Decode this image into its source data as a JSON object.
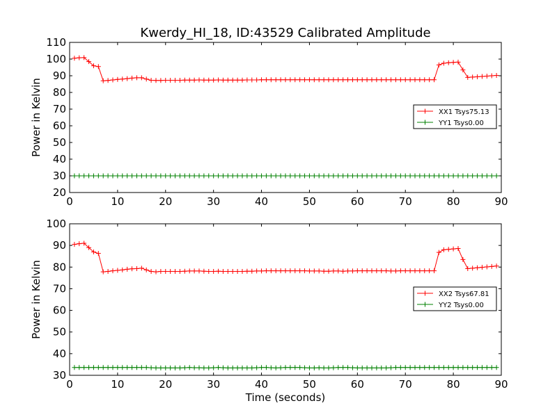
{
  "title": "Kwerdy_HI_18, ID:43529 Calibrated Amplitude",
  "chart_data": [
    {
      "type": "line",
      "ylabel": "Power in Kelvin",
      "xlabel": "",
      "xlim": [
        0,
        90
      ],
      "ylim": [
        20,
        110
      ],
      "xticks": [
        "0",
        "10",
        "20",
        "30",
        "40",
        "50",
        "60",
        "70",
        "80",
        "90"
      ],
      "yticks": [
        "20",
        "30",
        "40",
        "50",
        "60",
        "70",
        "80",
        "90",
        "100",
        "110"
      ],
      "grid": false,
      "legend_position": "right",
      "series": [
        {
          "name": "XX1 Tsys75.13",
          "color": "#ff0000",
          "marker": "+",
          "x": [
            1,
            2,
            3,
            4,
            5,
            6,
            7,
            8,
            9,
            10,
            11,
            12,
            13,
            14,
            15,
            16,
            17,
            18,
            19,
            20,
            21,
            22,
            23,
            24,
            25,
            26,
            27,
            28,
            29,
            30,
            31,
            32,
            33,
            34,
            35,
            36,
            37,
            38,
            39,
            40,
            41,
            42,
            43,
            44,
            45,
            46,
            47,
            48,
            49,
            50,
            51,
            52,
            53,
            54,
            55,
            56,
            57,
            58,
            59,
            60,
            61,
            62,
            63,
            64,
            65,
            66,
            67,
            68,
            69,
            70,
            71,
            72,
            73,
            74,
            75,
            76,
            77,
            78,
            79,
            80,
            81,
            82,
            83,
            84,
            85,
            86,
            87,
            88,
            89
          ],
          "values": [
            100.5,
            100.8,
            100.9,
            98.5,
            96,
            95.5,
            87,
            87.2,
            87.5,
            87.8,
            88,
            88.3,
            88.6,
            88.8,
            88.8,
            88,
            87.3,
            87.2,
            87.2,
            87.3,
            87.3,
            87.3,
            87.3,
            87.4,
            87.4,
            87.4,
            87.5,
            87.4,
            87.4,
            87.4,
            87.5,
            87.4,
            87.4,
            87.4,
            87.4,
            87.4,
            87.5,
            87.5,
            87.5,
            87.6,
            87.6,
            87.6,
            87.6,
            87.6,
            87.6,
            87.6,
            87.6,
            87.6,
            87.6,
            87.6,
            87.6,
            87.6,
            87.6,
            87.6,
            87.6,
            87.6,
            87.6,
            87.6,
            87.6,
            87.6,
            87.6,
            87.6,
            87.6,
            87.6,
            87.6,
            87.6,
            87.6,
            87.6,
            87.6,
            87.6,
            87.6,
            87.6,
            87.6,
            87.6,
            87.6,
            87.6,
            96.5,
            97.5,
            97.8,
            98,
            98.2,
            93.5,
            89,
            89.2,
            89.4,
            89.6,
            89.8,
            90,
            90.2
          ]
        },
        {
          "name": "YY1 Tsys0.00",
          "color": "#008000",
          "marker": "+",
          "x": [
            1,
            2,
            3,
            4,
            5,
            6,
            7,
            8,
            9,
            10,
            11,
            12,
            13,
            14,
            15,
            16,
            17,
            18,
            19,
            20,
            21,
            22,
            23,
            24,
            25,
            26,
            27,
            28,
            29,
            30,
            31,
            32,
            33,
            34,
            35,
            36,
            37,
            38,
            39,
            40,
            41,
            42,
            43,
            44,
            45,
            46,
            47,
            48,
            49,
            50,
            51,
            52,
            53,
            54,
            55,
            56,
            57,
            58,
            59,
            60,
            61,
            62,
            63,
            64,
            65,
            66,
            67,
            68,
            69,
            70,
            71,
            72,
            73,
            74,
            75,
            76,
            77,
            78,
            79,
            80,
            81,
            82,
            83,
            84,
            85,
            86,
            87,
            88,
            89
          ],
          "values": [
            30,
            30,
            30,
            30,
            30,
            30,
            30,
            30,
            30,
            30,
            30,
            30,
            30,
            30,
            30,
            30,
            30,
            30,
            30,
            30,
            30,
            30,
            30,
            30,
            30,
            30,
            30,
            30,
            30,
            30,
            30,
            30,
            30,
            30,
            30,
            30,
            30,
            30,
            30,
            30,
            30,
            30,
            30,
            30,
            30,
            30,
            30,
            30,
            30,
            30,
            30,
            30,
            30,
            30,
            30,
            30,
            30,
            30,
            30,
            30,
            30,
            30,
            30,
            30,
            30,
            30,
            30,
            30,
            30,
            30,
            30,
            30,
            30,
            30,
            30,
            30,
            30,
            30,
            30,
            30,
            30,
            30,
            30,
            30,
            30,
            30,
            30,
            30,
            30
          ]
        }
      ]
    },
    {
      "type": "line",
      "ylabel": "Power in Kelvin",
      "xlabel": "Time (seconds)",
      "xlim": [
        0,
        90
      ],
      "ylim": [
        30,
        100
      ],
      "xticks": [
        "0",
        "10",
        "20",
        "30",
        "40",
        "50",
        "60",
        "70",
        "80",
        "90"
      ],
      "yticks": [
        "30",
        "40",
        "50",
        "60",
        "70",
        "80",
        "90",
        "100"
      ],
      "grid": false,
      "legend_position": "right",
      "series": [
        {
          "name": "XX2 Tsys67.81",
          "color": "#ff0000",
          "marker": "+",
          "x": [
            1,
            2,
            3,
            4,
            5,
            6,
            7,
            8,
            9,
            10,
            11,
            12,
            13,
            14,
            15,
            16,
            17,
            18,
            19,
            20,
            21,
            22,
            23,
            24,
            25,
            26,
            27,
            28,
            29,
            30,
            31,
            32,
            33,
            34,
            35,
            36,
            37,
            38,
            39,
            40,
            41,
            42,
            43,
            44,
            45,
            46,
            47,
            48,
            49,
            50,
            51,
            52,
            53,
            54,
            55,
            56,
            57,
            58,
            59,
            60,
            61,
            62,
            63,
            64,
            65,
            66,
            67,
            68,
            69,
            70,
            71,
            72,
            73,
            74,
            75,
            76,
            77,
            78,
            79,
            80,
            81,
            82,
            83,
            84,
            85,
            86,
            87,
            88,
            89
          ],
          "values": [
            90.5,
            90.8,
            91,
            89,
            87,
            86.3,
            77.8,
            78,
            78.3,
            78.5,
            78.7,
            79,
            79.2,
            79.3,
            79.5,
            78.7,
            78,
            77.8,
            78,
            78,
            78,
            78,
            78,
            78.1,
            78.2,
            78.2,
            78.2,
            78.1,
            78,
            78,
            78.1,
            78,
            78,
            78,
            78,
            78,
            78.1,
            78.1,
            78.2,
            78.2,
            78.3,
            78.3,
            78.3,
            78.3,
            78.3,
            78.3,
            78.3,
            78.3,
            78.3,
            78.2,
            78.2,
            78.2,
            78.1,
            78.1,
            78.2,
            78.2,
            78.1,
            78.2,
            78.2,
            78.3,
            78.3,
            78.3,
            78.3,
            78.3,
            78.3,
            78.3,
            78.2,
            78.2,
            78.3,
            78.3,
            78.3,
            78.3,
            78.3,
            78.3,
            78.3,
            78.3,
            86.8,
            88,
            88.2,
            88.4,
            88.6,
            83.5,
            79.3,
            79.5,
            79.7,
            79.9,
            80.1,
            80.3,
            80.5
          ]
        },
        {
          "name": "YY2 Tsys0.00",
          "color": "#008000",
          "marker": "+",
          "x": [
            1,
            2,
            3,
            4,
            5,
            6,
            7,
            8,
            9,
            10,
            11,
            12,
            13,
            14,
            15,
            16,
            17,
            18,
            19,
            20,
            21,
            22,
            23,
            24,
            25,
            26,
            27,
            28,
            29,
            30,
            31,
            32,
            33,
            34,
            35,
            36,
            37,
            38,
            39,
            40,
            41,
            42,
            43,
            44,
            45,
            46,
            47,
            48,
            49,
            50,
            51,
            52,
            53,
            54,
            55,
            56,
            57,
            58,
            59,
            60,
            61,
            62,
            63,
            64,
            65,
            66,
            67,
            68,
            69,
            70,
            71,
            72,
            73,
            74,
            75,
            76,
            77,
            78,
            79,
            80,
            81,
            82,
            83,
            84,
            85,
            86,
            87,
            88,
            89
          ],
          "values": [
            33.6,
            33.6,
            33.6,
            33.6,
            33.6,
            33.6,
            33.6,
            33.6,
            33.6,
            33.6,
            33.6,
            33.6,
            33.6,
            33.6,
            33.6,
            33.6,
            33.5,
            33.4,
            33.4,
            33.4,
            33.4,
            33.4,
            33.4,
            33.5,
            33.6,
            33.5,
            33.5,
            33.4,
            33.4,
            33.5,
            33.6,
            33.5,
            33.4,
            33.4,
            33.4,
            33.4,
            33.4,
            33.4,
            33.5,
            33.6,
            33.6,
            33.5,
            33.4,
            33.5,
            33.6,
            33.6,
            33.6,
            33.6,
            33.5,
            33.4,
            33.4,
            33.5,
            33.4,
            33.4,
            33.5,
            33.6,
            33.6,
            33.6,
            33.5,
            33.4,
            33.4,
            33.4,
            33.4,
            33.4,
            33.4,
            33.4,
            33.5,
            33.6,
            33.6,
            33.6,
            33.6,
            33.6,
            33.6,
            33.6,
            33.6,
            33.6,
            33.6,
            33.6,
            33.6,
            33.6,
            33.6,
            33.6,
            33.6,
            33.6,
            33.6,
            33.6,
            33.6,
            33.6,
            33.6
          ]
        }
      ]
    }
  ]
}
